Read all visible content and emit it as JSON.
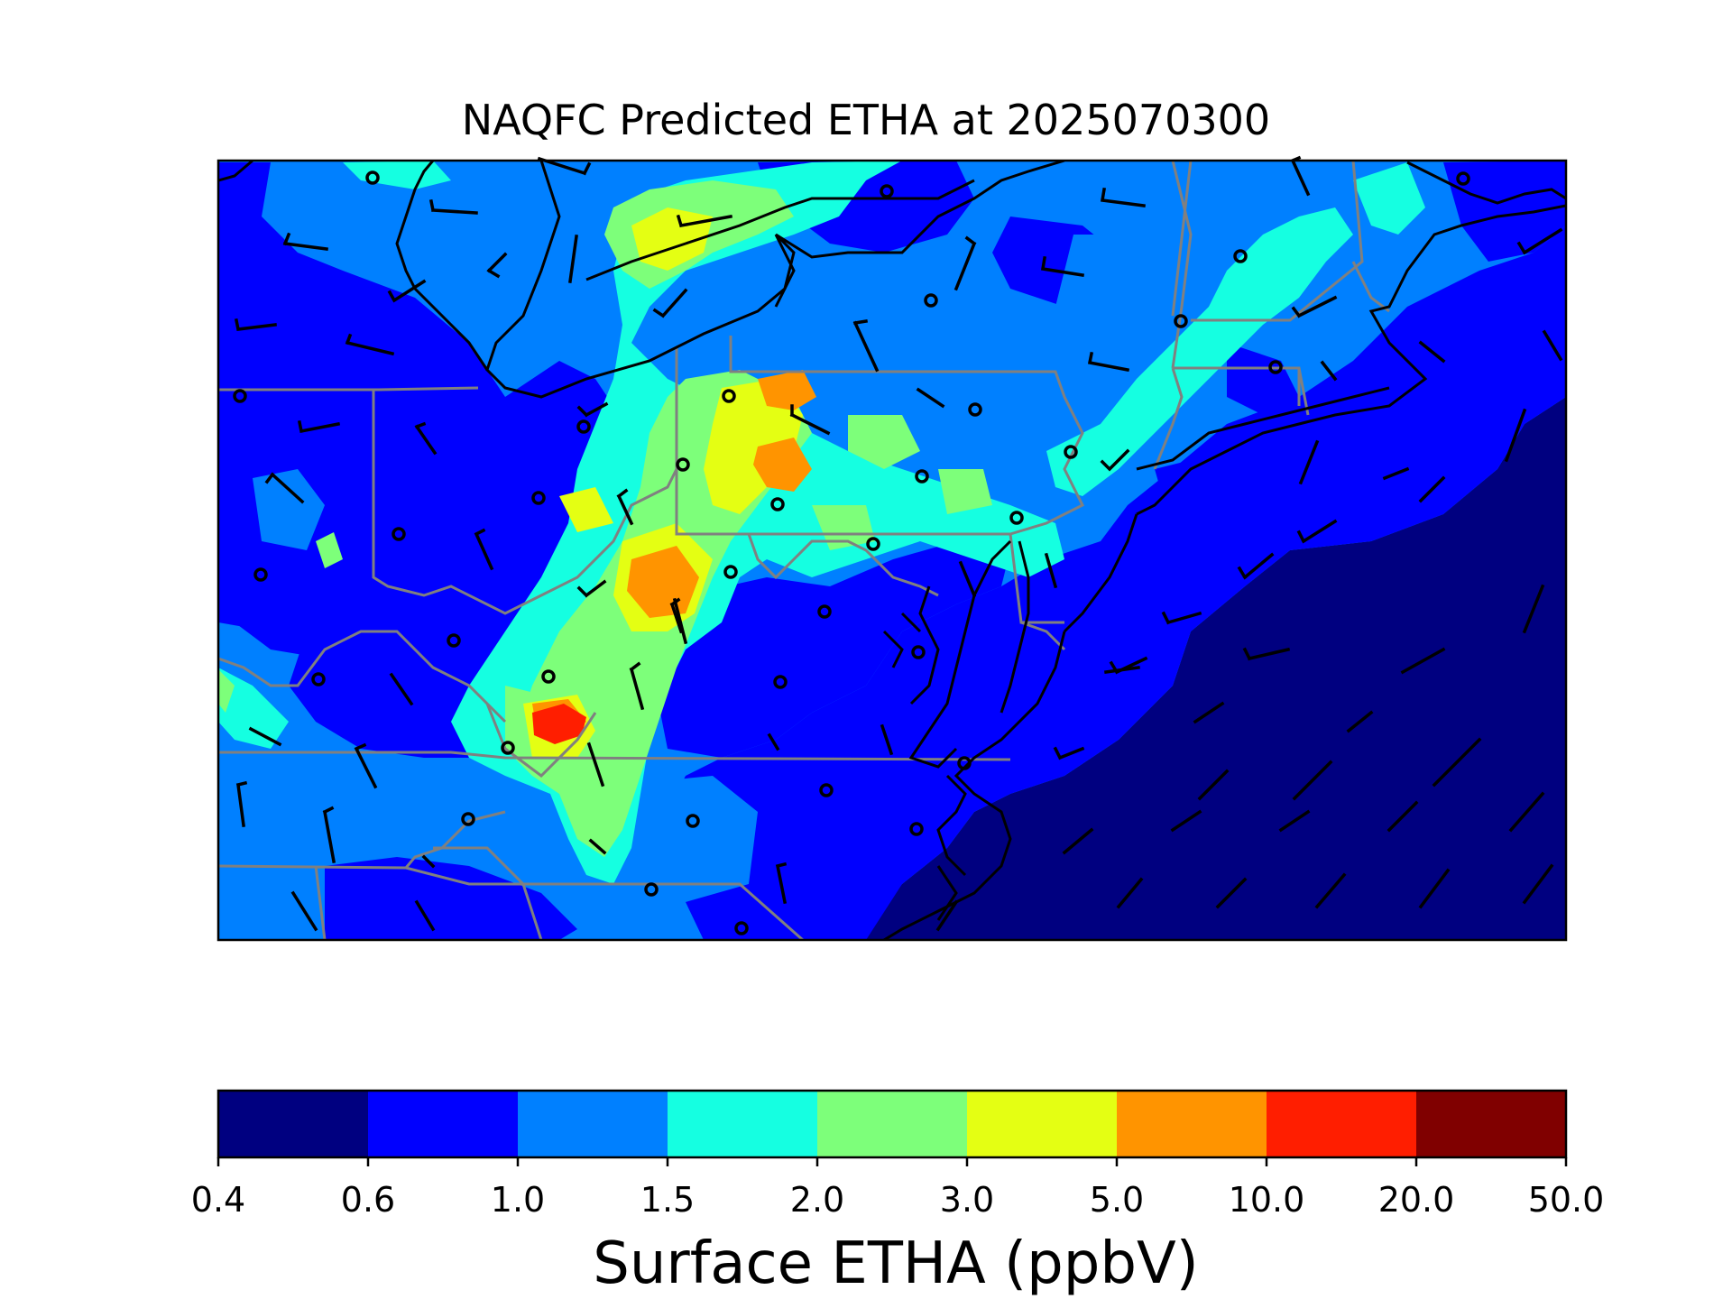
{
  "title": "NAQFC Predicted ETHA at 2025070300",
  "colorbar": {
    "label": "Surface ETHA (ppbV)",
    "levels": [
      "0.4",
      "0.6",
      "1.0",
      "1.5",
      "2.0",
      "3.0",
      "5.0",
      "10.0",
      "20.0",
      "50.0"
    ],
    "colors": [
      "#000080",
      "#0000ff",
      "#0080ff",
      "#15ffe1",
      "#7dff7a",
      "#e4ff13",
      "#ff9400",
      "#ff1e00",
      "#800000"
    ]
  },
  "map_colors": {
    "land_bg": "#0080ff",
    "ocean": "#000080",
    "coastline": "#000000",
    "state_border": "#808080",
    "wind_barb": "#000000",
    "station_marker": "#000000"
  },
  "icons": {
    "wind_barb": "wind-barb-icon",
    "station": "station-circle-icon"
  }
}
